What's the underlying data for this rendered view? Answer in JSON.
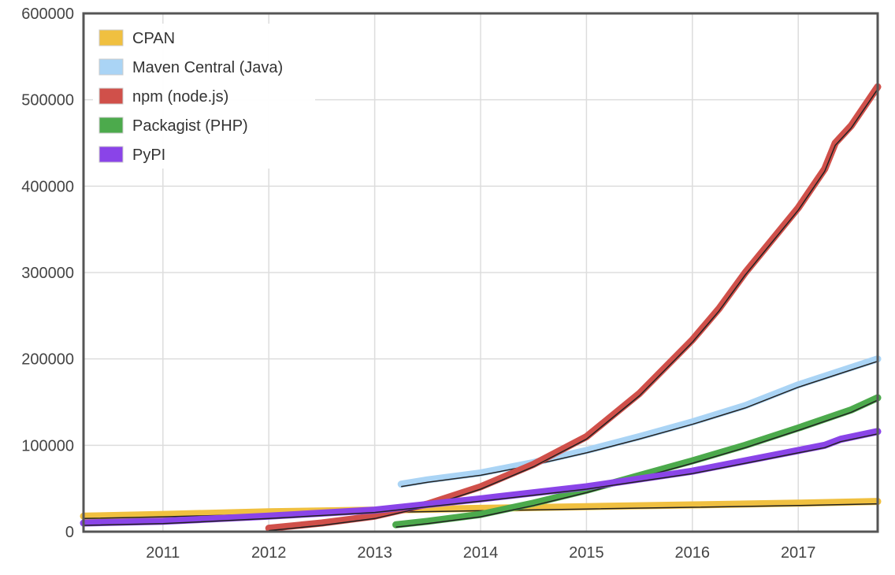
{
  "chart_data": {
    "type": "line",
    "title": "",
    "xlabel": "",
    "ylabel": "",
    "x_unit": "year",
    "xlim": [
      2010.25,
      2017.75
    ],
    "ylim": [
      0,
      600000
    ],
    "grid": true,
    "legend_position": "top-left",
    "x_ticks": [
      2011,
      2012,
      2013,
      2014,
      2015,
      2016,
      2017
    ],
    "x_tick_labels": [
      "2011",
      "2012",
      "2013",
      "2014",
      "2015",
      "2016",
      "2017"
    ],
    "y_ticks": [
      0,
      100000,
      200000,
      300000,
      400000,
      500000,
      600000
    ],
    "y_tick_labels": [
      "0",
      "100000",
      "200000",
      "300000",
      "400000",
      "500000",
      "600000"
    ],
    "series": [
      {
        "name": "CPAN",
        "color": "#f0c040",
        "points": [
          [
            2010.25,
            18000
          ],
          [
            2011.0,
            20000
          ],
          [
            2012.0,
            23000
          ],
          [
            2013.0,
            25000
          ],
          [
            2014.0,
            27000
          ],
          [
            2015.0,
            29000
          ],
          [
            2016.0,
            31000
          ],
          [
            2017.0,
            33000
          ],
          [
            2017.75,
            35000
          ]
        ]
      },
      {
        "name": "Maven Central (Java)",
        "color": "#aad4f5",
        "points": [
          [
            2013.25,
            55000
          ],
          [
            2013.5,
            60000
          ],
          [
            2014.0,
            68000
          ],
          [
            2014.5,
            80000
          ],
          [
            2015.0,
            94000
          ],
          [
            2015.5,
            110000
          ],
          [
            2016.0,
            127000
          ],
          [
            2016.5,
            146000
          ],
          [
            2017.0,
            170000
          ],
          [
            2017.5,
            190000
          ],
          [
            2017.75,
            200000
          ]
        ]
      },
      {
        "name": "npm (node.js)",
        "color": "#d0504a",
        "points": [
          [
            2012.0,
            4000
          ],
          [
            2012.5,
            10000
          ],
          [
            2013.0,
            18000
          ],
          [
            2013.5,
            32000
          ],
          [
            2014.0,
            52000
          ],
          [
            2014.5,
            78000
          ],
          [
            2015.0,
            110000
          ],
          [
            2015.5,
            160000
          ],
          [
            2016.0,
            222000
          ],
          [
            2016.25,
            258000
          ],
          [
            2016.5,
            300000
          ],
          [
            2017.0,
            375000
          ],
          [
            2017.25,
            420000
          ],
          [
            2017.35,
            450000
          ],
          [
            2017.5,
            470000
          ],
          [
            2017.75,
            515000
          ]
        ]
      },
      {
        "name": "Packagist (PHP)",
        "color": "#4caa4c",
        "points": [
          [
            2013.2,
            8000
          ],
          [
            2013.5,
            12000
          ],
          [
            2014.0,
            20000
          ],
          [
            2014.5,
            33000
          ],
          [
            2015.0,
            48000
          ],
          [
            2015.5,
            65000
          ],
          [
            2016.0,
            82000
          ],
          [
            2016.5,
            100000
          ],
          [
            2017.0,
            120000
          ],
          [
            2017.5,
            141000
          ],
          [
            2017.75,
            155000
          ]
        ]
      },
      {
        "name": "PyPI",
        "color": "#8a44e8",
        "points": [
          [
            2010.25,
            10000
          ],
          [
            2011.0,
            12000
          ],
          [
            2012.0,
            18000
          ],
          [
            2013.0,
            25000
          ],
          [
            2014.0,
            38000
          ],
          [
            2015.0,
            52000
          ],
          [
            2016.0,
            70000
          ],
          [
            2016.5,
            82000
          ],
          [
            2017.0,
            94000
          ],
          [
            2017.25,
            100000
          ],
          [
            2017.4,
            107000
          ],
          [
            2017.75,
            116000
          ]
        ]
      }
    ]
  }
}
